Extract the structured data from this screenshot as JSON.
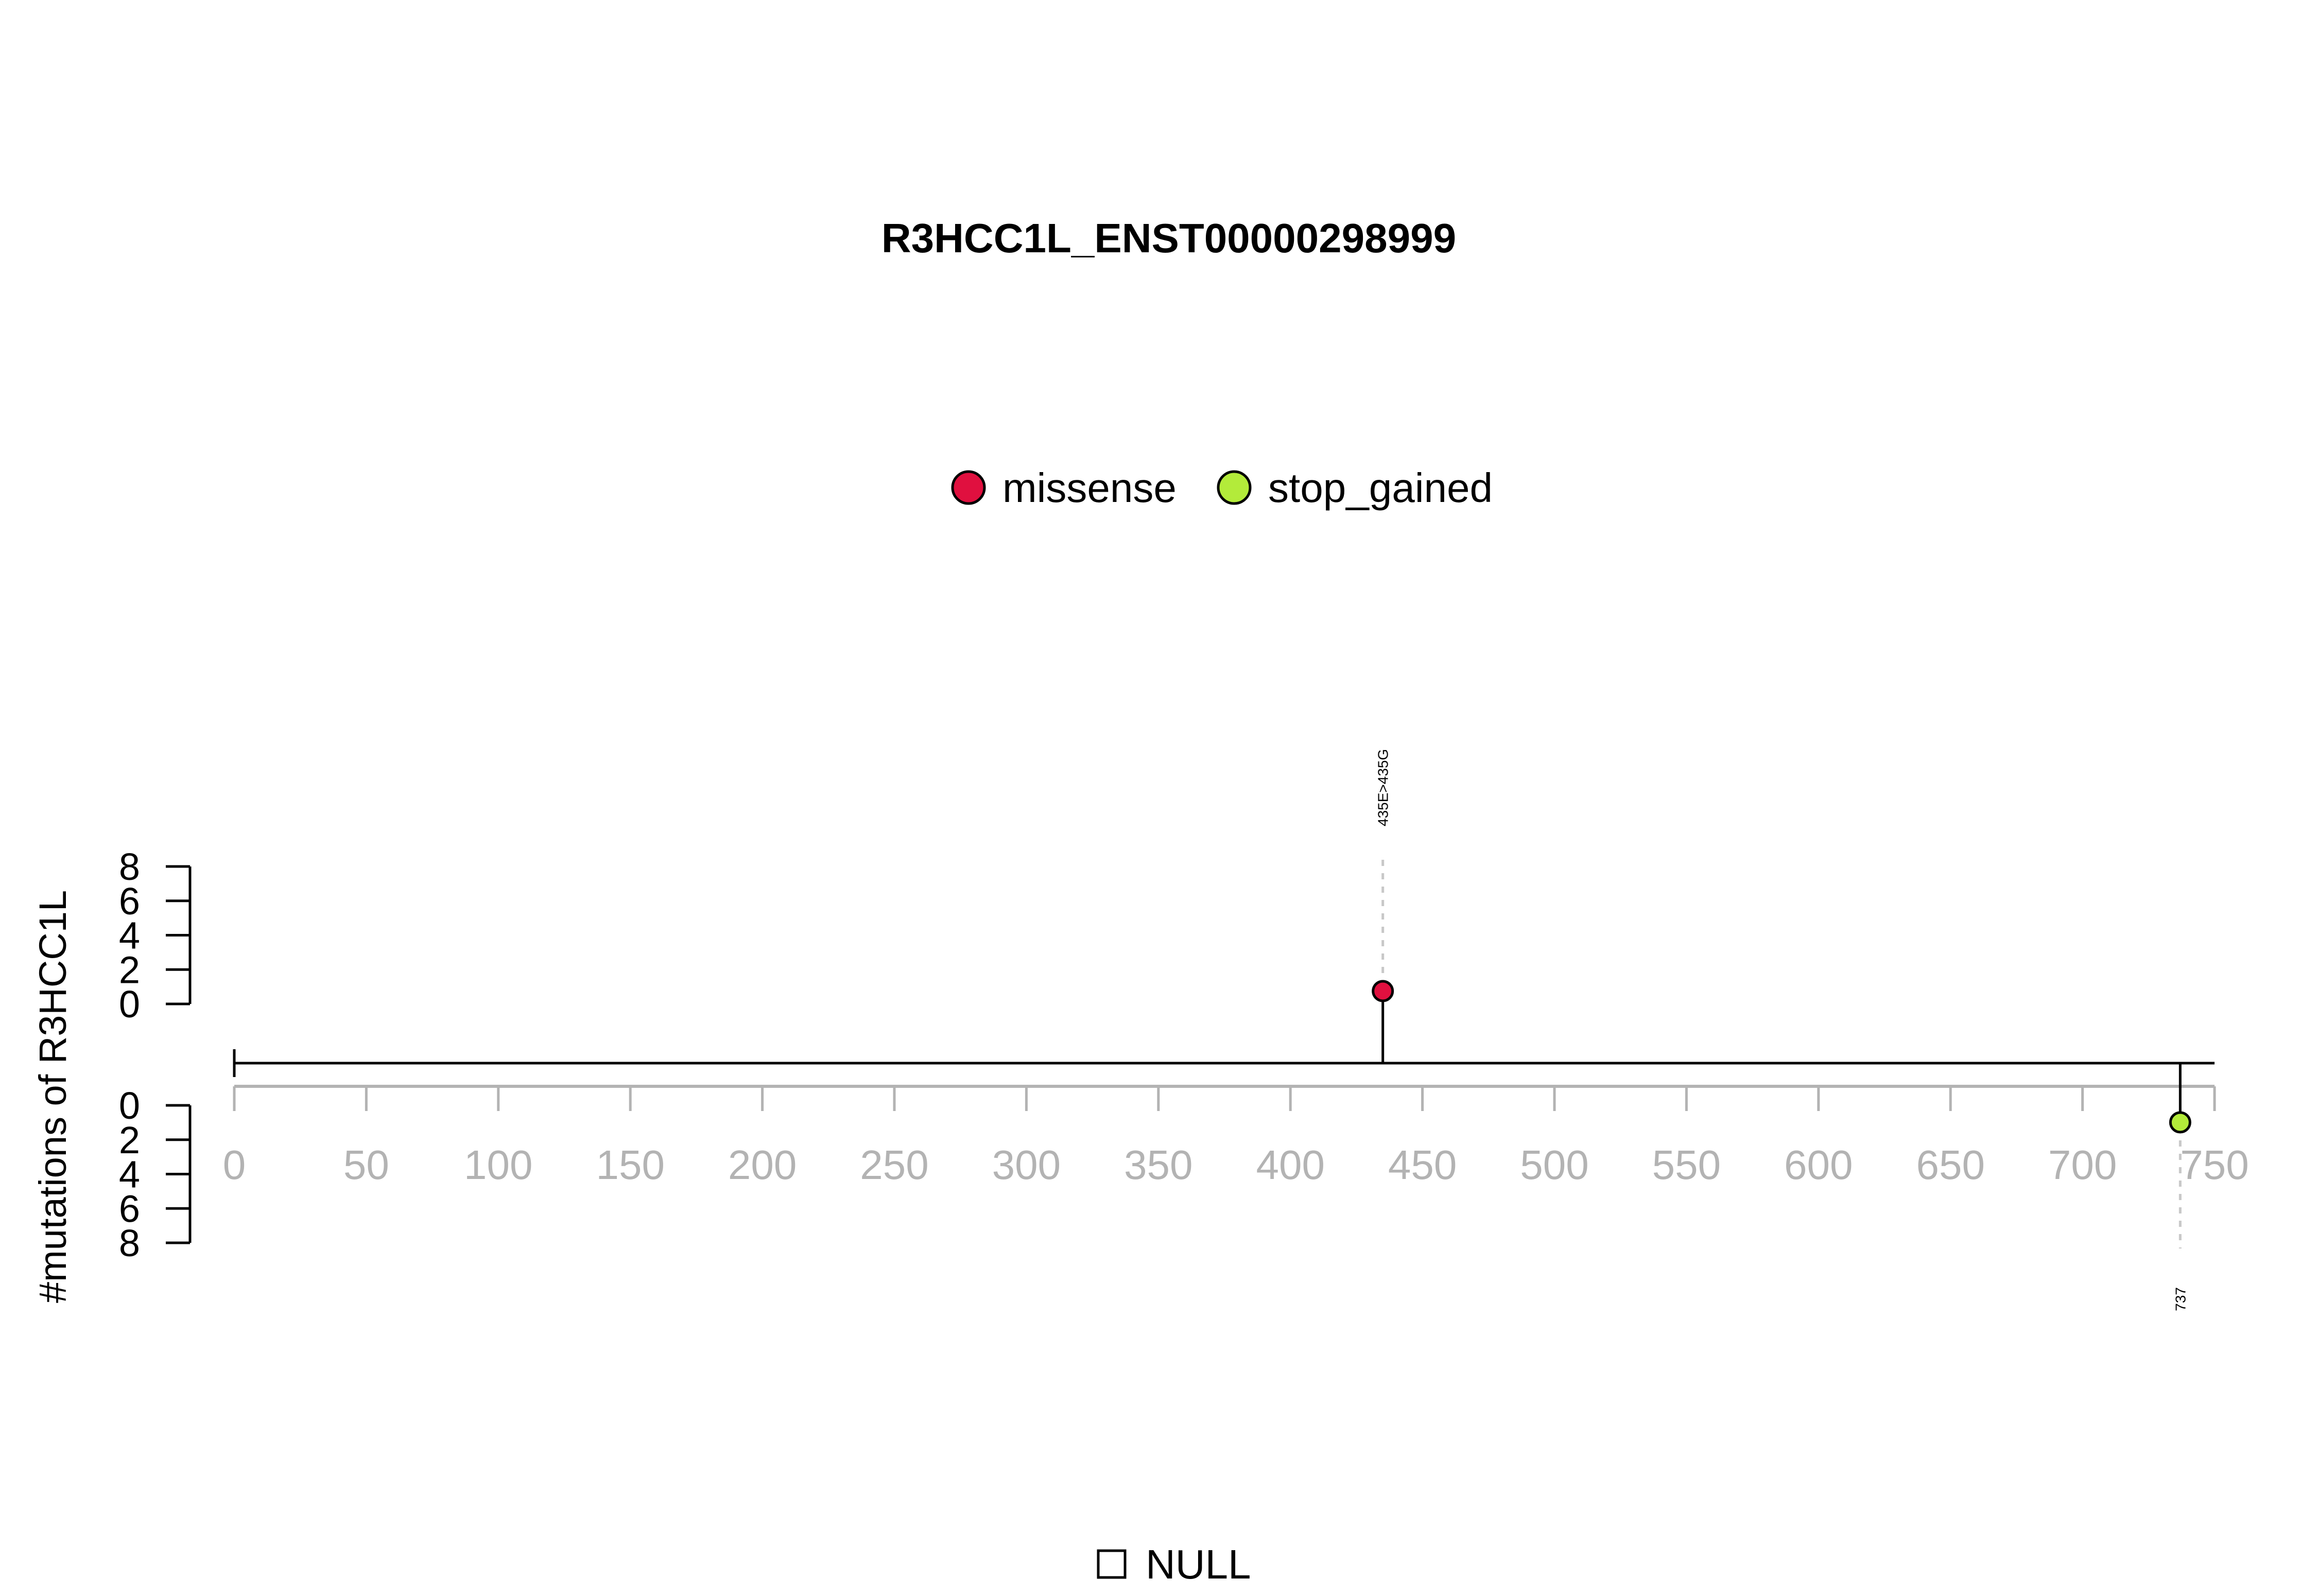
{
  "chart_data": {
    "type": "lollipop",
    "title": "R3HCC1L_ENST00000298999",
    "ylabel": "#mutations of R3HCC1L",
    "protein_length": 750,
    "xlim": [
      0,
      750
    ],
    "x_ticks": [
      0,
      50,
      100,
      150,
      200,
      250,
      300,
      350,
      400,
      450,
      500,
      550,
      600,
      650,
      700,
      750
    ],
    "y_upper": {
      "ylim": [
        0,
        8
      ],
      "ticks": [
        0,
        2,
        4,
        6,
        8
      ]
    },
    "y_lower": {
      "ylim": [
        0,
        8
      ],
      "ticks": [
        0,
        2,
        4,
        6,
        8
      ]
    },
    "legend": [
      {
        "label": "missense",
        "color": "#E0103F"
      },
      {
        "label": "stop_gained",
        "color": "#B3EB3A"
      }
    ],
    "domain_legend": [
      {
        "label": "NULL"
      }
    ],
    "mutations": [
      {
        "position": 435,
        "count": 1,
        "type": "missense",
        "label": "435E>435G",
        "side": "top",
        "color": "#E0103F"
      },
      {
        "position": 737,
        "count": 1,
        "type": "stop_gained",
        "label": "737",
        "side": "bottom",
        "color": "#B3EB3A"
      }
    ],
    "grid": false
  }
}
